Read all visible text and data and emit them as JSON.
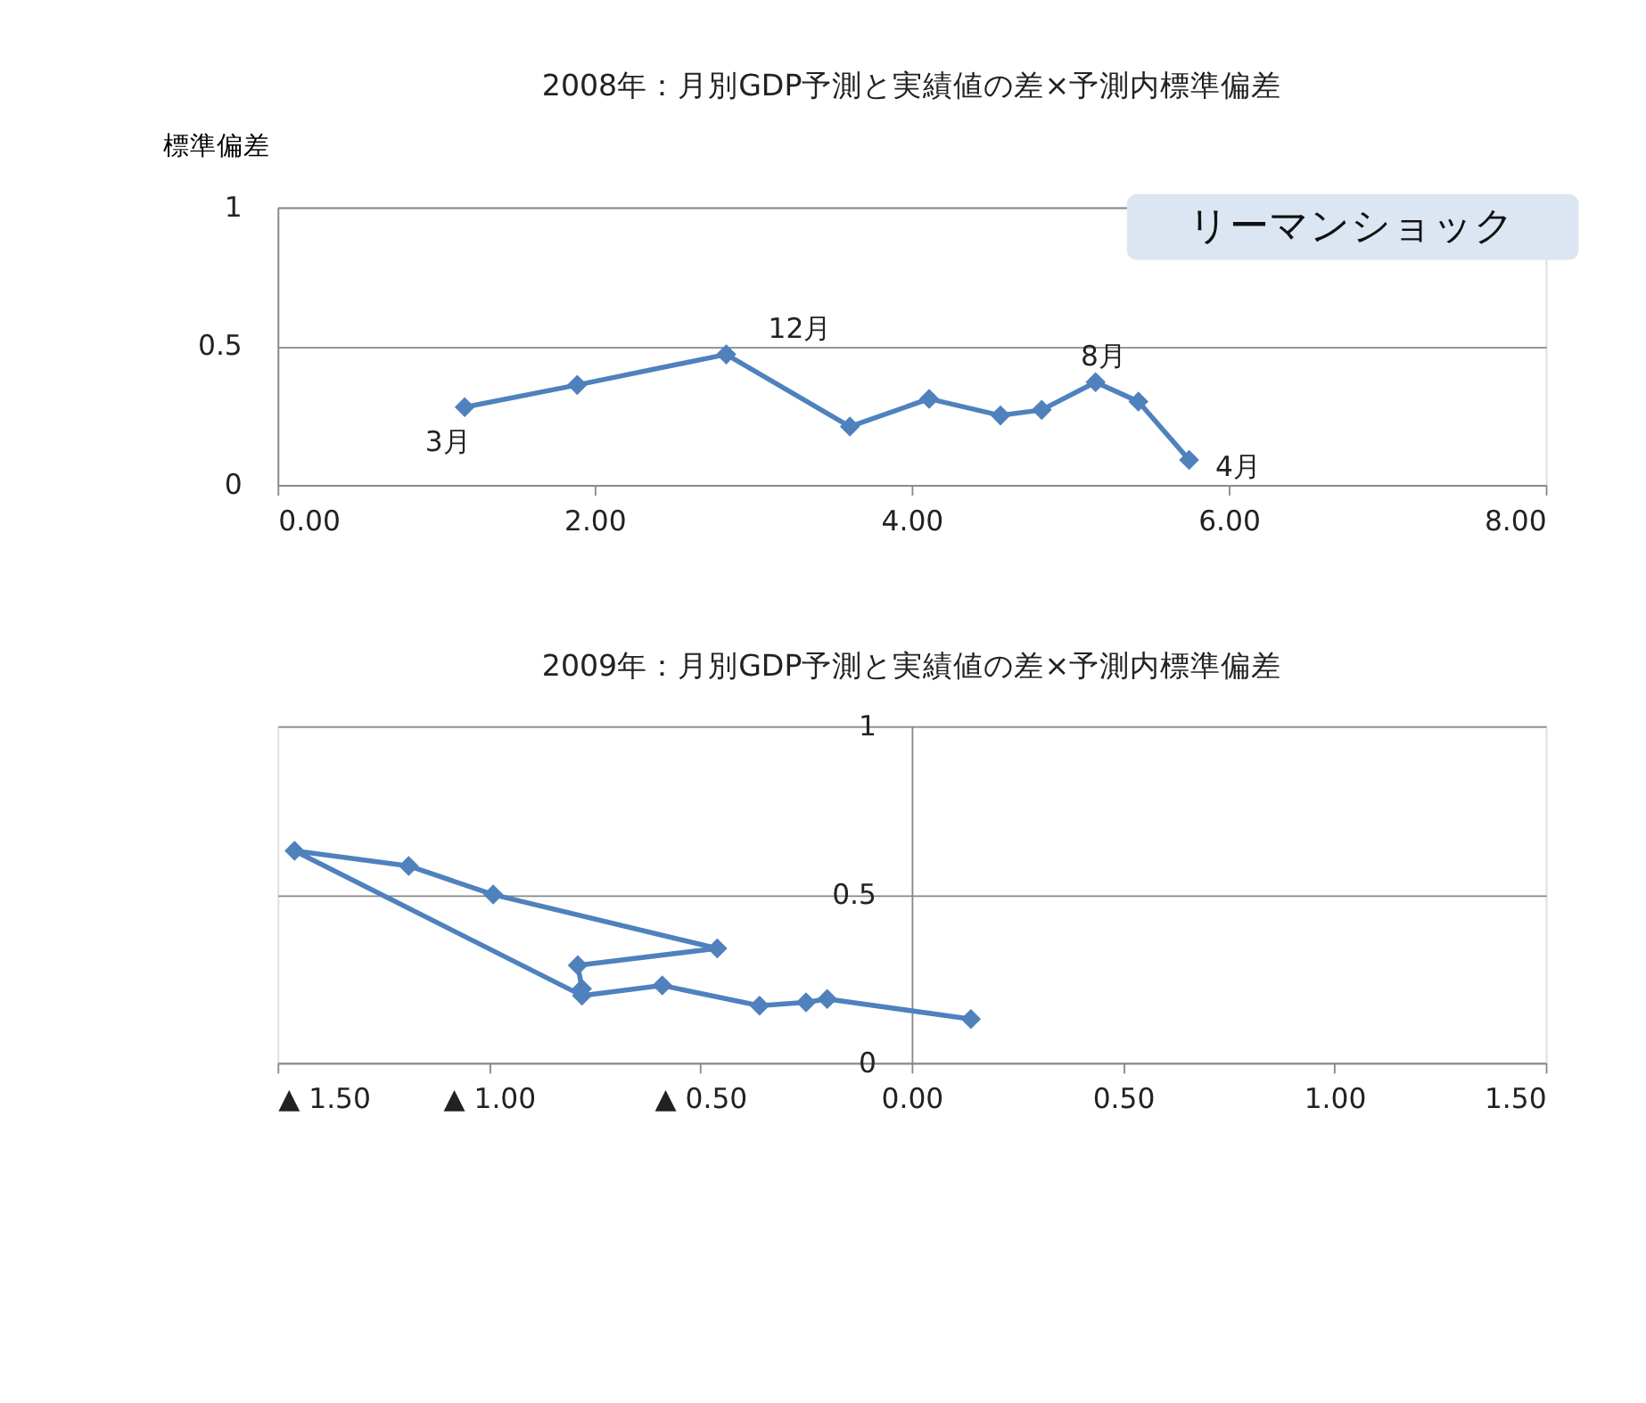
{
  "chart_data": [
    {
      "type": "line",
      "title": "2008年：月別GDP予測と実績値の差×予測内標準偏差",
      "ylabel": "標準偏差",
      "x": [
        1.18,
        1.89,
        2.83,
        3.61,
        4.11,
        4.56,
        4.82,
        5.16,
        5.43,
        5.75
      ],
      "series": [
        {
          "color": "#4f81bd",
          "values": [
            0.28,
            0.36,
            0.47,
            0.21,
            0.31,
            0.25,
            0.27,
            0.37,
            0.3,
            0.09
          ]
        }
      ],
      "xlim": [
        0,
        8
      ],
      "xticks": [
        {
          "value": 0,
          "label": "0.00"
        },
        {
          "value": 2,
          "label": "2.00"
        },
        {
          "value": 4,
          "label": "4.00"
        },
        {
          "value": 6,
          "label": "6.00"
        },
        {
          "value": 8,
          "label": "8.00"
        }
      ],
      "ylim": [
        0,
        1
      ],
      "yticks": [
        0,
        0.5,
        1
      ],
      "grid": "y",
      "marker": "diamond",
      "line_style": "solid",
      "legend": false,
      "annotations": [
        {
          "text": "3月",
          "x": 1.18,
          "y": 0.28
        },
        {
          "text": "12月",
          "x": 2.83,
          "y": 0.47
        },
        {
          "text": "8月",
          "x": 5.16,
          "y": 0.37
        },
        {
          "text": "4月",
          "x": 5.75,
          "y": 0.09
        },
        "リーマンショック"
      ]
    },
    {
      "type": "line",
      "title": "2009年：月別GDP予測と実績値の差×予測内標準偏差",
      "x": [
        -0.78,
        -0.79,
        -0.46,
        -0.99,
        -1.19,
        -1.46,
        -0.78,
        -0.59,
        -0.36,
        -0.25,
        -0.2,
        0.14
      ],
      "series": [
        {
          "color": "#4f81bd",
          "values": [
            0.22,
            0.29,
            0.34,
            0.5,
            0.585,
            0.63,
            0.2,
            0.23,
            0.17,
            0.18,
            0.19,
            0.13
          ]
        }
      ],
      "xlim": [
        -1.5,
        1.5
      ],
      "xticks": [
        {
          "value": -1.5,
          "label": "▲ 1.50"
        },
        {
          "value": -1,
          "label": "▲ 1.00"
        },
        {
          "value": -0.5,
          "label": "▲ 0.50"
        },
        {
          "value": 0,
          "label": "0.00"
        },
        {
          "value": 0.5,
          "label": "0.50"
        },
        {
          "value": 1,
          "label": "1.00"
        },
        {
          "value": 1.5,
          "label": "1.50"
        }
      ],
      "ylim": [
        0,
        1
      ],
      "yticks": [
        0,
        0.5,
        1
      ],
      "grid": "y",
      "marker": "diamond",
      "line_style": "solid",
      "legend": false
    }
  ]
}
